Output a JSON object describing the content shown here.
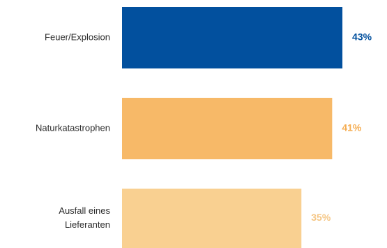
{
  "chart_data": {
    "type": "bar",
    "orientation": "horizontal",
    "categories": [
      "Feuer/Explosion",
      "Naturkatastrophen",
      "Ausfall eines Lieferanten"
    ],
    "category_lines": [
      [
        "Feuer/Explosion"
      ],
      [
        "Naturkatastrophen"
      ],
      [
        "Ausfall eines",
        "Lieferanten"
      ]
    ],
    "values": [
      43,
      41,
      35
    ],
    "value_labels": [
      "43%",
      "41%",
      "35%"
    ],
    "bar_colors": [
      "#02509e",
      "#f7b968",
      "#f9d091"
    ],
    "label_colors": [
      "#02509e",
      "#f5ad52",
      "#f5c684"
    ],
    "title": "",
    "xlabel": "",
    "ylabel": "",
    "grid": false,
    "legend": "none"
  }
}
